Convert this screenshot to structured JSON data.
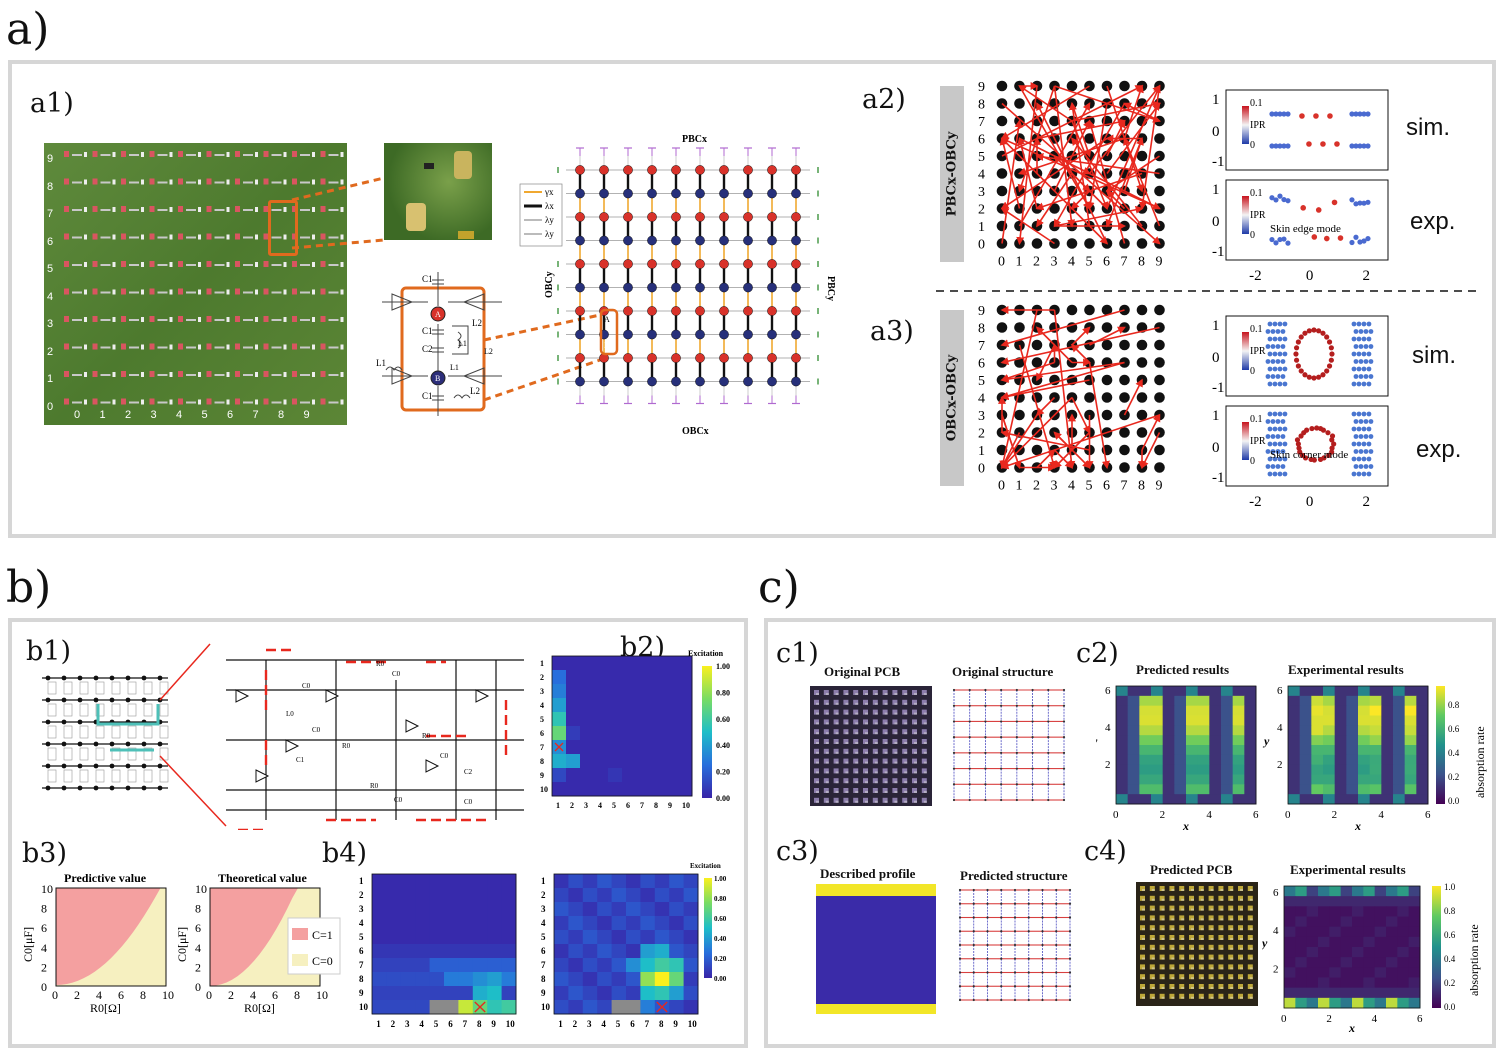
{
  "labels": {
    "a": "a)",
    "a1": "a1)",
    "a2": "a2)",
    "a3": "a3)",
    "b": "b)",
    "b1": "b1)",
    "b2": "b2)",
    "b3": "b3)",
    "b4": "b4)",
    "c": "c)",
    "c1": "c1)",
    "c2": "c2)",
    "c3": "c3)",
    "c4": "c4)"
  },
  "a1": {
    "photo_x_ticks": [
      "0",
      "1",
      "2",
      "3",
      "4",
      "5",
      "6",
      "7",
      "8",
      "9"
    ],
    "photo_y_ticks": [
      "9",
      "8",
      "7",
      "6",
      "5",
      "4",
      "3",
      "2",
      "1",
      "0"
    ],
    "circuit": {
      "C1_top": "C1",
      "A": "A",
      "C1_mid": "C1",
      "C2": "C2",
      "L1": "L1",
      "L2": "L2",
      "B": "B",
      "C1_bot": "C1",
      "L1b": "L1",
      "L2b": "L2",
      "L1c": "L1",
      "L2c": "L2"
    },
    "lattice": {
      "pbcx": "PBCx",
      "obcx": "OBCx",
      "obcy": "OBCy",
      "pbcy": "PBCy",
      "A": "A",
      "B": "B",
      "legend": [
        "γx",
        "λx",
        "λy",
        "λy"
      ]
    }
  },
  "a2": {
    "sidebar": "PBCx-OBCy",
    "ticks": [
      "0",
      "1",
      "2",
      "3",
      "4",
      "5",
      "6",
      "7",
      "8",
      "9"
    ],
    "sim": "sim.",
    "exp": "exp.",
    "spec_yticks": [
      "1",
      "0",
      "-1"
    ],
    "spec_xticks": [
      "-2",
      "0",
      "2"
    ],
    "ipr": "IPR",
    "ipr_max": "0.1",
    "ipr_min": "0",
    "annotation": "Skin edge mode"
  },
  "a3": {
    "sidebar": "OBCx-OBCy",
    "ticks": [
      "0",
      "1",
      "2",
      "3",
      "4",
      "5",
      "6",
      "7",
      "8",
      "9"
    ],
    "sim": "sim.",
    "exp": "exp.",
    "spec_yticks": [
      "1",
      "0",
      "-1"
    ],
    "spec_xticks": [
      "-2",
      "0",
      "2"
    ],
    "ipr": "IPR",
    "ipr_max": "0.1",
    "ipr_min": "0",
    "annotation": "Skin corner mode"
  },
  "b1": {
    "c0": "C0",
    "r0": "R0",
    "l0": "L0",
    "c1": "C1",
    "c2": "C2"
  },
  "b2": {
    "colorbar_title": "Excitation",
    "colorbar_ticks": [
      "1.00",
      "0.80",
      "0.60",
      "0.40",
      "0.20",
      "0.00"
    ],
    "x_ticks": [
      "1",
      "2",
      "3",
      "4",
      "5",
      "6",
      "7",
      "8",
      "9",
      "10"
    ],
    "y_ticks": [
      "1",
      "2",
      "3",
      "4",
      "5",
      "6",
      "7",
      "8",
      "9",
      "10"
    ]
  },
  "b3": {
    "left_title": "Predictive value",
    "right_title": "Theoretical value",
    "ylabel": "C0[μF]",
    "xlabel": "R0[Ω]",
    "xticks": [
      "0",
      "2",
      "4",
      "6",
      "8",
      "10"
    ],
    "yticks": [
      "10",
      "8",
      "6",
      "4",
      "2",
      "0"
    ],
    "legend": [
      "C=1",
      "C=0"
    ],
    "legend_colors": [
      "#f4a0a0",
      "#f6f0c0"
    ]
  },
  "b4": {
    "colorbar_title": "Excitation",
    "colorbar_ticks": [
      "1.00",
      "0.80",
      "0.60",
      "0.40",
      "0.20",
      "0.00"
    ],
    "x_ticks": [
      "1",
      "2",
      "3",
      "4",
      "5",
      "6",
      "7",
      "8",
      "9",
      "10"
    ],
    "y_ticks": [
      "1",
      "2",
      "3",
      "4",
      "5",
      "6",
      "7",
      "8",
      "9",
      "10"
    ]
  },
  "c1": {
    "title1": "Original PCB",
    "title2": "Original structure"
  },
  "c2": {
    "title1": "Predicted results",
    "title2": "Experimental results",
    "xlabel": "x",
    "ylabel": "y",
    "xticks": [
      "0",
      "2",
      "4",
      "6"
    ],
    "yticks": [
      "6",
      "4",
      "2"
    ],
    "colorbar_label": "absorption rate",
    "colorbar_ticks": [
      "0.8",
      "0.6",
      "0.4",
      "0.2",
      "0.0"
    ]
  },
  "c3": {
    "title1": "Described profile",
    "title2": "Predicted structure"
  },
  "c4": {
    "title1": "Predicted PCB",
    "title2": "Experimental results",
    "xlabel": "x",
    "ylabel": "y",
    "xticks": [
      "0",
      "2",
      "4",
      "6"
    ],
    "yticks": [
      "6",
      "4",
      "2"
    ],
    "colorbar_label": "absorption rate",
    "colorbar_ticks": [
      "1.0",
      "0.8",
      "0.6",
      "0.4",
      "0.2",
      "0.0"
    ]
  },
  "colors": {
    "box_border": "#d6d6d6",
    "arrow": "#e8281e",
    "orange": "#e06a1e",
    "viridis_yellow": "#f2e628",
    "viridis_blue": "#3a2ba8"
  }
}
